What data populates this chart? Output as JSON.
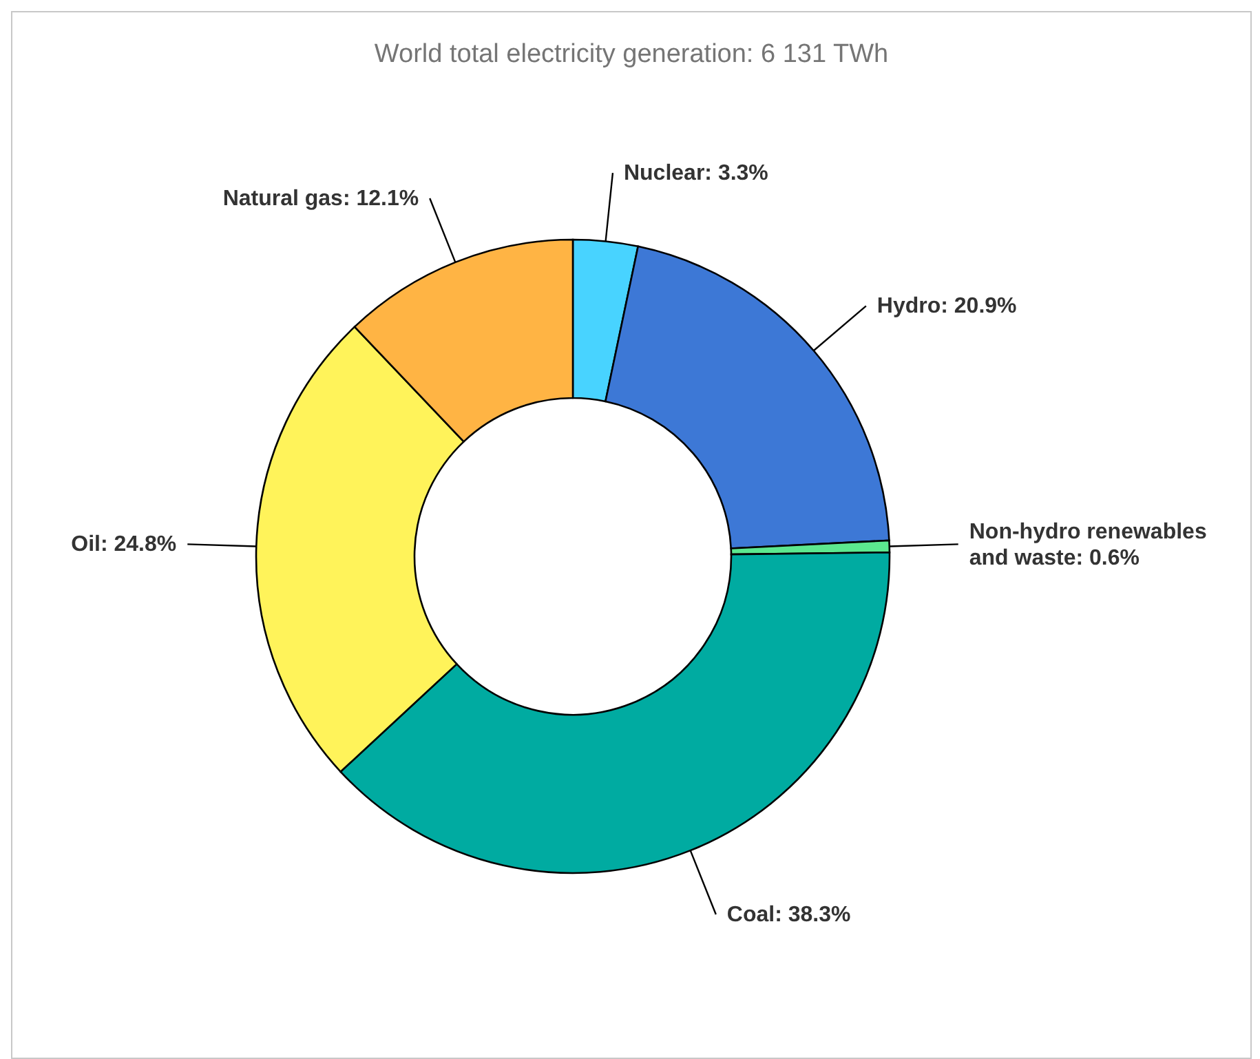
{
  "chart_data": {
    "type": "donut",
    "title": "World total electricity generation: 6 131 TWh",
    "categories": [
      "Nuclear",
      "Hydro",
      "Non-hydro renewables and waste",
      "Coal",
      "Oil",
      "Natural gas"
    ],
    "values": [
      3.3,
      20.9,
      0.6,
      38.3,
      24.8,
      12.1
    ],
    "value_labels": [
      "3.3%",
      "20.9%",
      "0.6%",
      "38.3%",
      "24.8%",
      "12.1%"
    ],
    "colors": [
      "#48d3ff",
      "#3d78d6",
      "#5ce88f",
      "#00aba1",
      "#fff35a",
      "#ffb444"
    ]
  }
}
